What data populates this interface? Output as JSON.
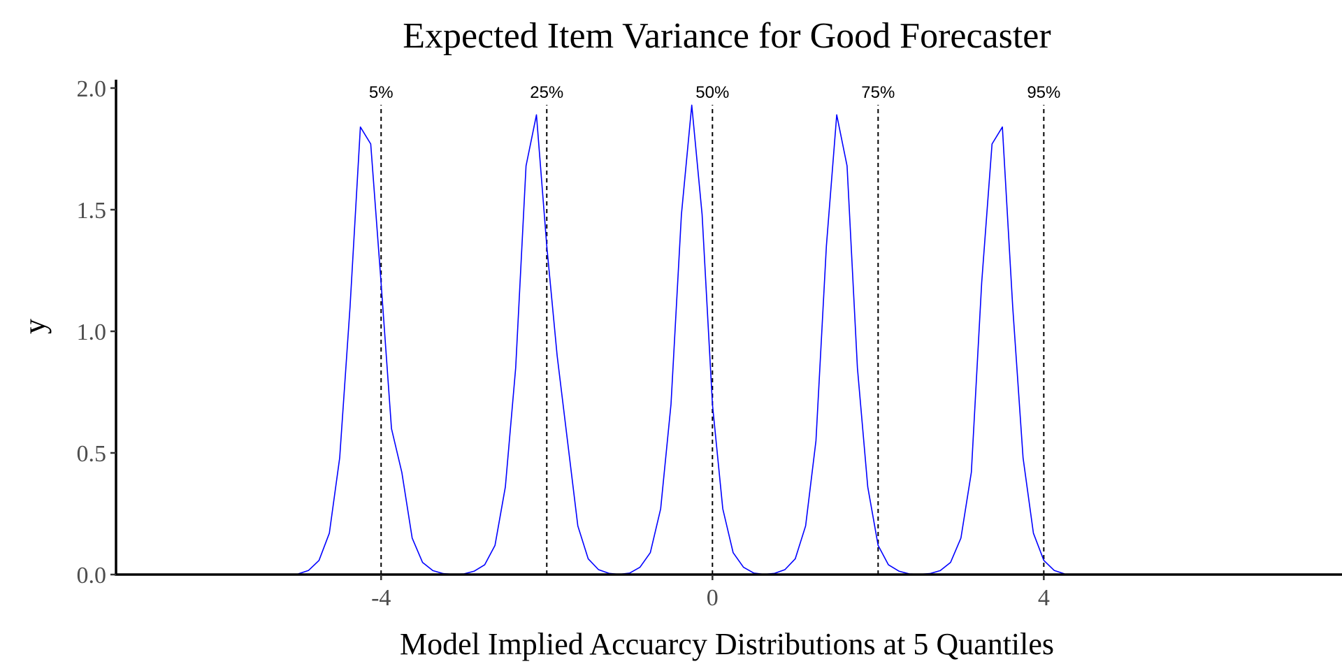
{
  "chart_data": {
    "type": "line",
    "title": "Expected Item Variance for Good Forecaster",
    "xlabel": "Model Implied Accuarcy Distributions at 5 Quantiles",
    "ylabel": "y",
    "xlim": [
      -7.2,
      7.6
    ],
    "ylim": [
      0,
      2.0
    ],
    "x_ticks": [
      -4,
      0,
      4
    ],
    "x_tick_labels": [
      "-4",
      "0",
      "4"
    ],
    "y_ticks": [
      0.0,
      0.5,
      1.0,
      1.5,
      2.0
    ],
    "y_tick_labels": [
      "0.0",
      "0.5",
      "1.0",
      "1.5",
      "2.0"
    ],
    "grid": false,
    "line_color": "#0000ff",
    "vline_color": "#000000",
    "quantile_lines": [
      {
        "label": "5%",
        "x": -4
      },
      {
        "label": "25%",
        "x": -2
      },
      {
        "label": "50%",
        "x": 0
      },
      {
        "label": "75%",
        "x": 2
      },
      {
        "label": "95%",
        "x": 4
      }
    ],
    "series": [
      {
        "values": [
          [
            -5.0,
            0.003
          ],
          [
            -4.875,
            0.017
          ],
          [
            -4.75,
            0.058
          ],
          [
            -4.625,
            0.17
          ],
          [
            -4.5,
            0.48
          ],
          [
            -4.375,
            1.1
          ],
          [
            -4.25,
            1.84
          ],
          [
            -4.125,
            1.77
          ],
          [
            -4.0,
            1.2
          ],
          [
            -3.875,
            0.6
          ],
          [
            -3.75,
            0.42
          ],
          [
            -3.625,
            0.15
          ],
          [
            -3.5,
            0.05
          ],
          [
            -3.375,
            0.016
          ],
          [
            -3.25,
            0.004
          ],
          [
            -3.125,
            0.001
          ],
          [
            -3.0,
            0.003
          ],
          [
            -2.875,
            0.014
          ],
          [
            -2.75,
            0.04
          ],
          [
            -2.625,
            0.12
          ],
          [
            -2.5,
            0.36
          ],
          [
            -2.375,
            0.85
          ],
          [
            -2.25,
            1.68
          ],
          [
            -2.125,
            1.89
          ],
          [
            -2.0,
            1.35
          ],
          [
            -1.875,
            0.9
          ],
          [
            -1.75,
            0.55
          ],
          [
            -1.625,
            0.2
          ],
          [
            -1.5,
            0.065
          ],
          [
            -1.375,
            0.02
          ],
          [
            -1.25,
            0.005
          ],
          [
            -1.125,
            0.001
          ],
          [
            -1.0,
            0.006
          ],
          [
            -0.875,
            0.03
          ],
          [
            -0.75,
            0.09
          ],
          [
            -0.625,
            0.27
          ],
          [
            -0.5,
            0.7
          ],
          [
            -0.375,
            1.48
          ],
          [
            -0.25,
            1.93
          ],
          [
            -0.125,
            1.48
          ],
          [
            0.0,
            0.7
          ],
          [
            0.125,
            0.27
          ],
          [
            0.25,
            0.09
          ],
          [
            0.375,
            0.03
          ],
          [
            0.5,
            0.006
          ],
          [
            0.625,
            0.001
          ],
          [
            0.75,
            0.005
          ],
          [
            0.875,
            0.02
          ],
          [
            1.0,
            0.065
          ],
          [
            1.125,
            0.2
          ],
          [
            1.25,
            0.55
          ],
          [
            1.375,
            1.35
          ],
          [
            1.5,
            1.89
          ],
          [
            1.625,
            1.68
          ],
          [
            1.75,
            0.85
          ],
          [
            1.875,
            0.36
          ],
          [
            2.0,
            0.12
          ],
          [
            2.125,
            0.04
          ],
          [
            2.25,
            0.014
          ],
          [
            2.375,
            0.003
          ],
          [
            2.5,
            0.001
          ],
          [
            2.625,
            0.004
          ],
          [
            2.75,
            0.016
          ],
          [
            2.875,
            0.05
          ],
          [
            3.0,
            0.15
          ],
          [
            3.125,
            0.42
          ],
          [
            3.25,
            1.2
          ],
          [
            3.375,
            1.77
          ],
          [
            3.5,
            1.84
          ],
          [
            3.625,
            1.1
          ],
          [
            3.75,
            0.48
          ],
          [
            3.875,
            0.17
          ],
          [
            4.0,
            0.058
          ],
          [
            4.125,
            0.017
          ],
          [
            4.25,
            0.003
          ]
        ]
      }
    ]
  }
}
